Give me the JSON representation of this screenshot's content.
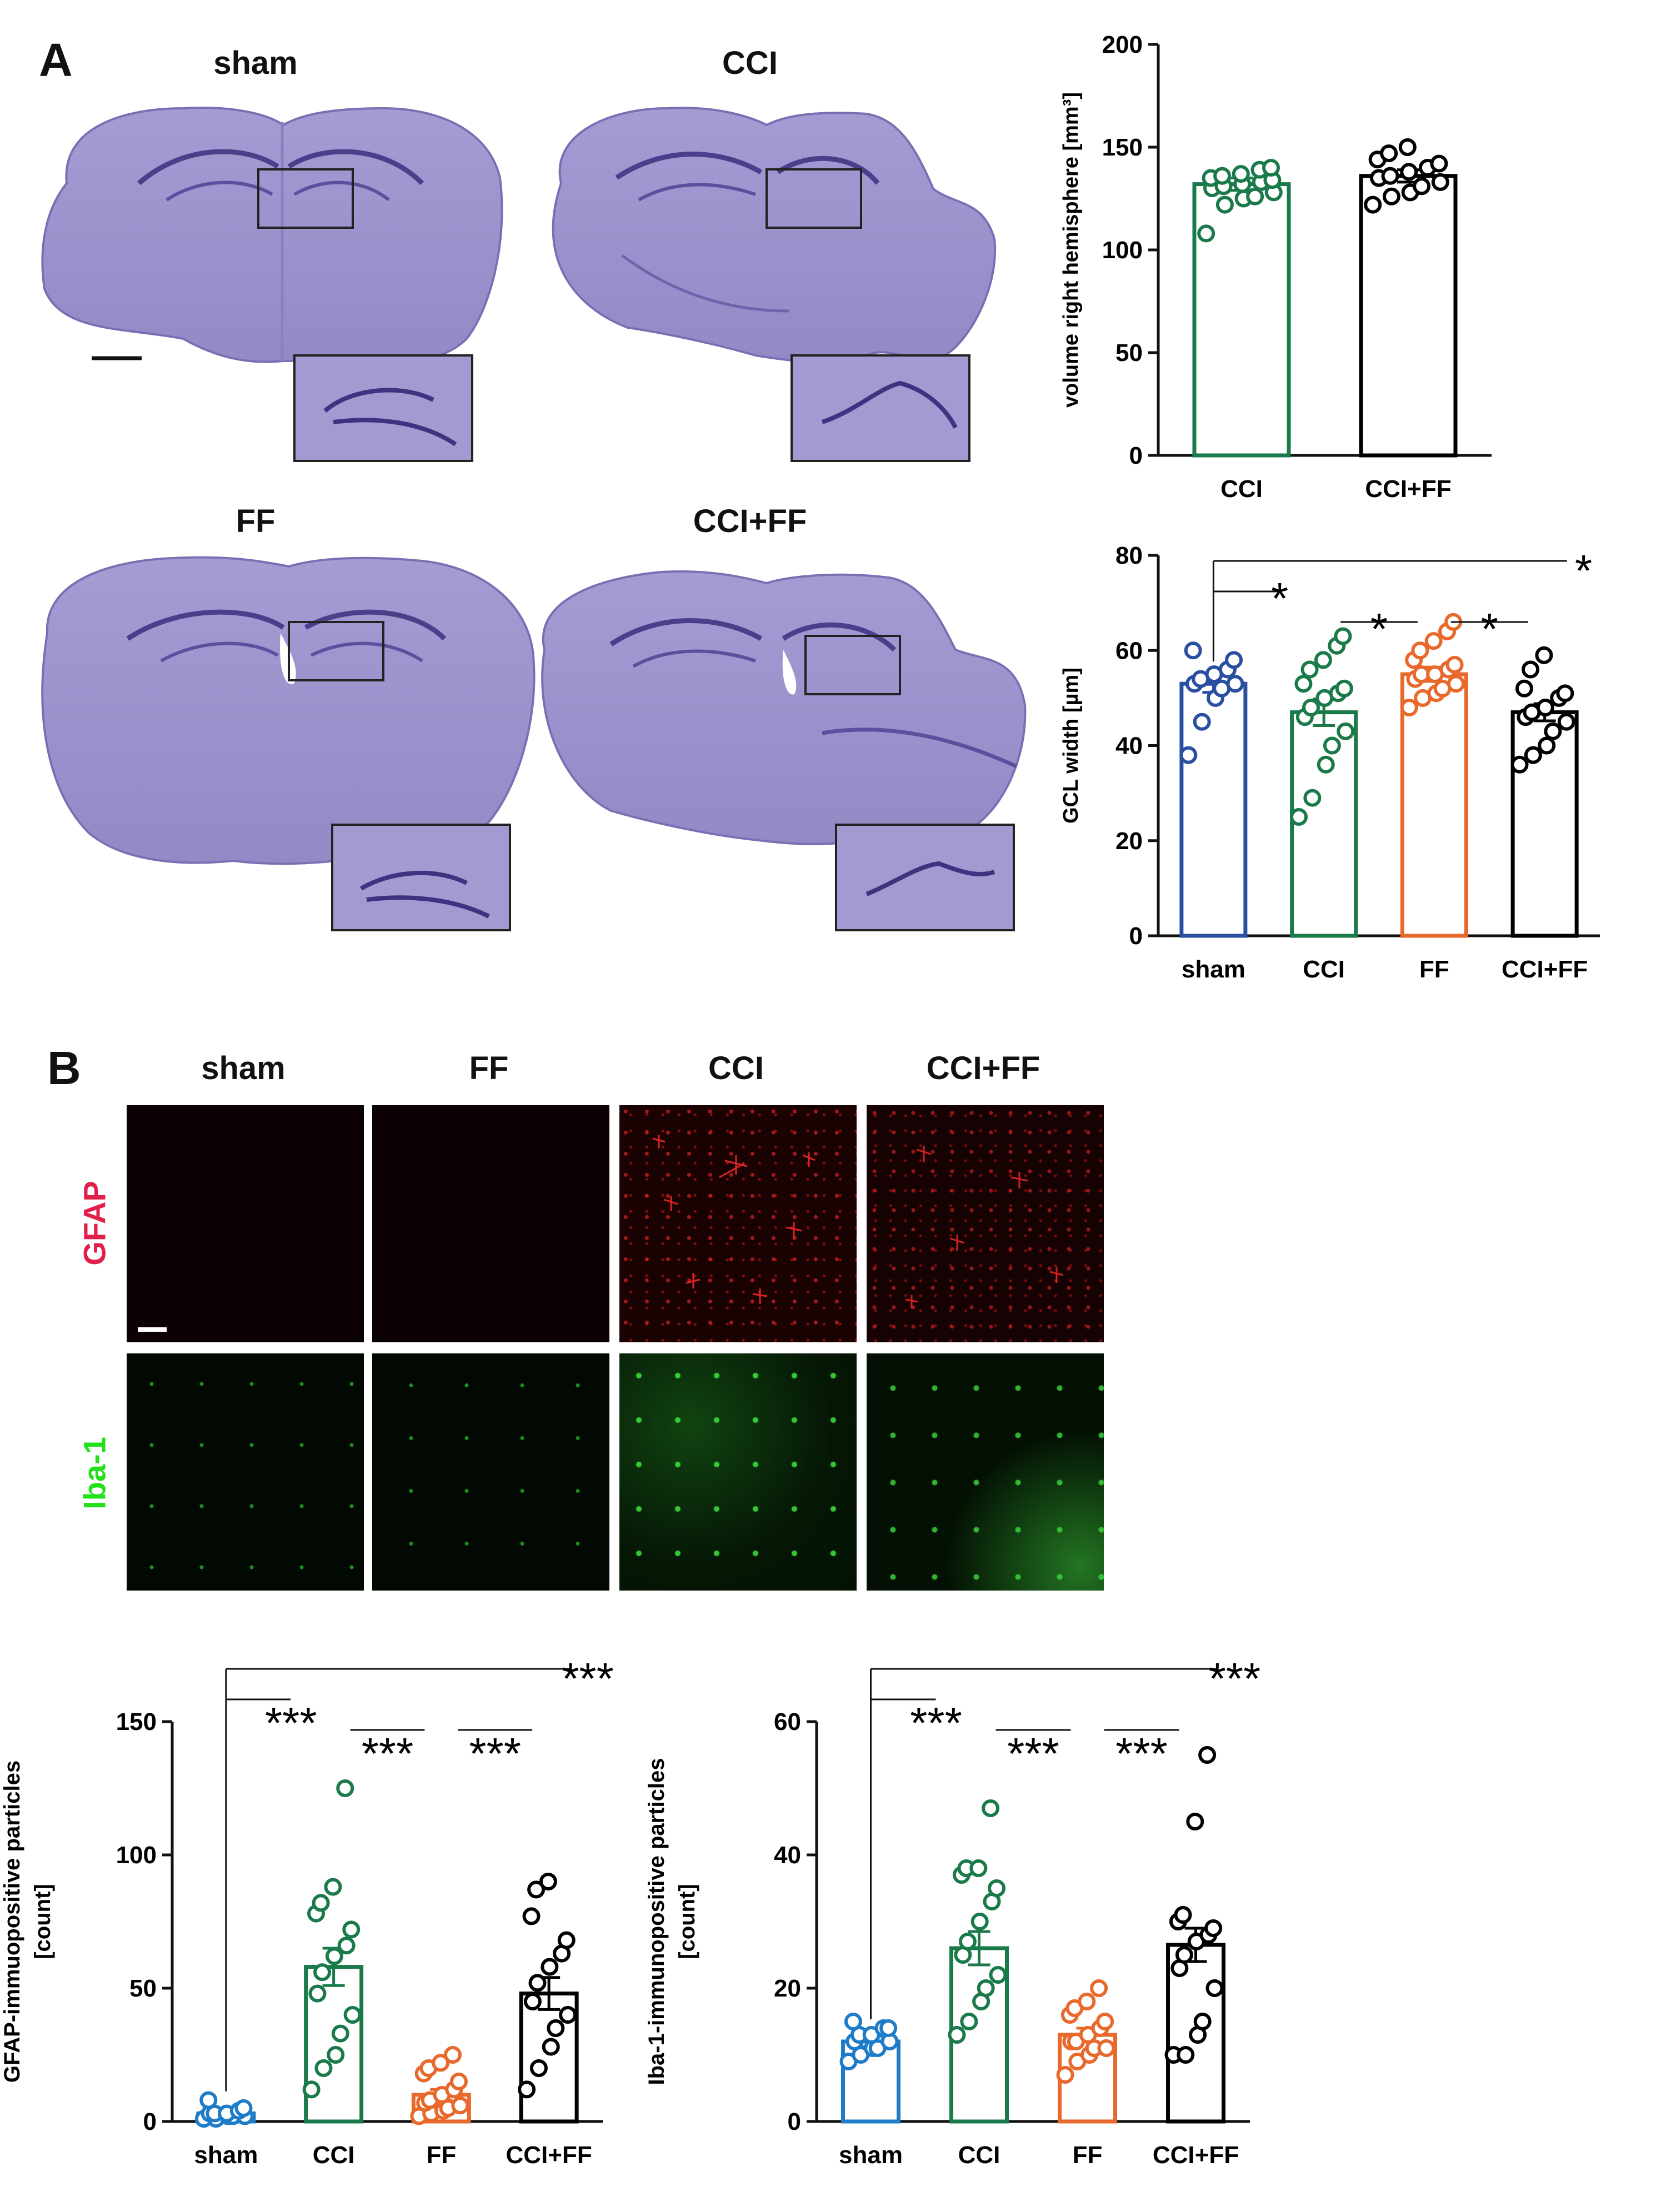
{
  "panel_a": {
    "letter": "A",
    "section_labels": [
      "sham",
      "CCI",
      "FF",
      "CCI+FF"
    ]
  },
  "panel_b": {
    "letter": "B",
    "column_labels": [
      "sham",
      "FF",
      "CCI",
      "CCI+FF"
    ],
    "row_labels": [
      "GFAP",
      "Iba-1"
    ],
    "row_colors": [
      "#e0204a",
      "#22e01a"
    ]
  },
  "colors": {
    "sham": "#2a4fa0",
    "sham_light": "#1f7cc8",
    "cci": "#1a7a4a",
    "ff": "#e8692c",
    "ccif": "#000000",
    "nissl": "#9b90cc"
  },
  "chart_data": [
    {
      "id": "volume",
      "type": "bar",
      "title": "",
      "xlabel": "",
      "ylabel": "volume right hemisphere [mm³]",
      "ylim": [
        0,
        200
      ],
      "yticks": [
        "0",
        "50",
        "100",
        "150",
        "200"
      ],
      "categories": [
        "CCI",
        "CCI+FF"
      ],
      "values": [
        132,
        136
      ],
      "sem": [
        3,
        3
      ],
      "colors": [
        "#1a7a4a",
        "#000000"
      ],
      "points": [
        [
          108,
          122,
          125,
          126,
          128,
          130,
          131,
          132,
          133,
          134,
          135,
          136,
          137,
          139,
          140
        ],
        [
          122,
          126,
          128,
          131,
          133,
          135,
          136,
          138,
          140,
          142,
          144,
          147,
          150
        ]
      ],
      "annotations": []
    },
    {
      "id": "gcl",
      "type": "bar",
      "title": "",
      "xlabel": "",
      "ylabel": "GCL width [µm]",
      "ylim": [
        0,
        80
      ],
      "yticks": [
        "0",
        "20",
        "40",
        "60",
        "80"
      ],
      "categories": [
        "sham",
        "CCI",
        "FF",
        "CCI+FF"
      ],
      "values": [
        53,
        47,
        55,
        47
      ],
      "sem": [
        1.8,
        2.8,
        1.5,
        1.8
      ],
      "colors": [
        "#2a4fa0",
        "#1a7a4a",
        "#e8692c",
        "#000000"
      ],
      "points": [
        [
          38,
          45,
          50,
          52,
          53,
          53,
          54,
          55,
          56,
          58,
          60
        ],
        [
          25,
          29,
          36,
          40,
          43,
          46,
          48,
          50,
          51,
          52,
          53,
          56,
          58,
          61,
          63
        ],
        [
          48,
          50,
          51,
          52,
          53,
          54,
          55,
          55,
          56,
          57,
          58,
          60,
          62,
          64,
          66
        ],
        [
          36,
          38,
          40,
          43,
          45,
          46,
          47,
          48,
          50,
          51,
          52,
          56,
          59
        ]
      ],
      "annotations": [
        {
          "from": 0,
          "to": 3,
          "label": "*"
        },
        {
          "from": 0,
          "to": 1,
          "label": "*"
        },
        {
          "from": 1,
          "to": 2,
          "label": "*"
        },
        {
          "from": 2,
          "to": 3,
          "label": "*"
        }
      ]
    },
    {
      "id": "gfap",
      "type": "bar",
      "title": "",
      "xlabel": "",
      "ylabel": "GFAP-immuopositive particles [count]",
      "ylabel_lines": [
        "GFAP-immuopositive particles",
        "[count]"
      ],
      "ylim": [
        0,
        150
      ],
      "yticks": [
        "0",
        "50",
        "100",
        "150"
      ],
      "categories": [
        "sham",
        "CCI",
        "FF",
        "CCI+FF"
      ],
      "values": [
        3,
        58,
        10,
        48
      ],
      "sem": [
        0.8,
        7,
        2,
        6
      ],
      "colors": [
        "#1f7cc8",
        "#1a7a4a",
        "#e8692c",
        "#000000"
      ],
      "points": [
        [
          1,
          1,
          2,
          2,
          2,
          3,
          3,
          3,
          4,
          5,
          8
        ],
        [
          12,
          20,
          25,
          33,
          40,
          48,
          56,
          62,
          66,
          72,
          78,
          82,
          88,
          125
        ],
        [
          2,
          3,
          4,
          5,
          6,
          7,
          8,
          10,
          12,
          15,
          18,
          20,
          22,
          25
        ],
        [
          12,
          20,
          28,
          35,
          40,
          45,
          52,
          58,
          63,
          68,
          77,
          87,
          90
        ]
      ],
      "annotations": [
        {
          "from": 0,
          "to": 3,
          "label": "***"
        },
        {
          "from": 0,
          "to": 1,
          "label": "***"
        },
        {
          "from": 1,
          "to": 2,
          "label": "***"
        },
        {
          "from": 2,
          "to": 3,
          "label": "***"
        }
      ]
    },
    {
      "id": "iba",
      "type": "bar",
      "title": "",
      "xlabel": "",
      "ylabel": "Iba-1-immunopositive particles [count]",
      "ylabel_lines": [
        "Iba-1-immunopositive particles",
        "[count]"
      ],
      "ylim": [
        0,
        60
      ],
      "yticks": [
        "0",
        "20",
        "40",
        "60"
      ],
      "categories": [
        "sham",
        "CCI",
        "FF",
        "CCI+FF"
      ],
      "values": [
        12,
        26,
        13,
        26.5
      ],
      "sem": [
        0.8,
        2.5,
        1,
        2.5
      ],
      "colors": [
        "#1f7cc8",
        "#1a7a4a",
        "#e8692c",
        "#000000"
      ],
      "points": [
        [
          9,
          10,
          11,
          11,
          12,
          12,
          13,
          13,
          14,
          14,
          15
        ],
        [
          13,
          15,
          18,
          20,
          22,
          25,
          27,
          30,
          33,
          35,
          37,
          38,
          38,
          47
        ],
        [
          7,
          9,
          10,
          11,
          11,
          12,
          12,
          13,
          14,
          15,
          16,
          17,
          18,
          20
        ],
        [
          10,
          10,
          13,
          15,
          20,
          23,
          25,
          27,
          28,
          29,
          30,
          31,
          45,
          55
        ]
      ],
      "annotations": [
        {
          "from": 0,
          "to": 3,
          "label": "***"
        },
        {
          "from": 0,
          "to": 1,
          "label": "***"
        },
        {
          "from": 1,
          "to": 2,
          "label": "***"
        },
        {
          "from": 2,
          "to": 3,
          "label": "***"
        }
      ]
    }
  ]
}
